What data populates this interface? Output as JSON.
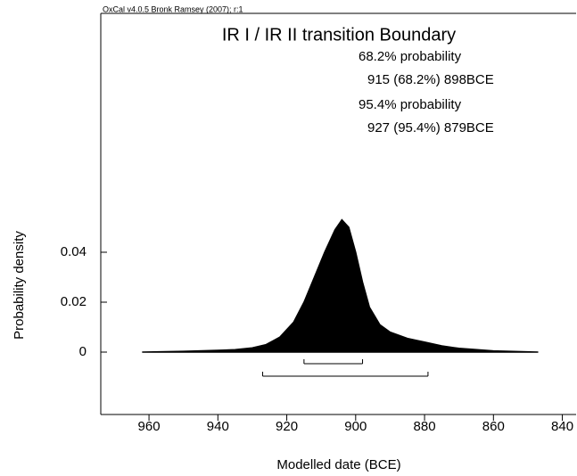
{
  "chart_data": {
    "type": "area",
    "header": "OxCal v4.0.5 Bronk Ramsey (2007); r:1",
    "title": "IR I / IR II transition Boundary",
    "annotations": [
      "68.2% probability",
      "915 (68.2%) 898BCE",
      "95.4% probability",
      "927 (95.4%) 879BCE"
    ],
    "x_label": "Modelled date (BCE)",
    "y_label": "Probability density",
    "x": [
      962,
      950,
      940,
      935,
      930,
      926,
      922,
      918,
      915,
      912,
      909,
      906,
      904,
      902,
      900,
      898,
      896,
      893,
      890,
      885,
      880,
      875,
      870,
      860,
      847
    ],
    "values": [
      0,
      0.0003,
      0.0007,
      0.001,
      0.0017,
      0.003,
      0.006,
      0.012,
      0.02,
      0.03,
      0.04,
      0.049,
      0.053,
      0.05,
      0.04,
      0.028,
      0.018,
      0.011,
      0.008,
      0.0055,
      0.004,
      0.0025,
      0.0015,
      0.0005,
      0
    ],
    "color": "#000000",
    "ranges": [
      {
        "from": 915,
        "to": 898
      },
      {
        "from": 927,
        "to": 879
      }
    ],
    "xlim": [
      974,
      836
    ],
    "xticks": [
      960,
      940,
      920,
      900,
      880,
      860,
      840
    ],
    "ylim": [
      -0.025,
      0.1357
    ],
    "yticks": [
      0,
      0.02,
      0.04
    ]
  }
}
